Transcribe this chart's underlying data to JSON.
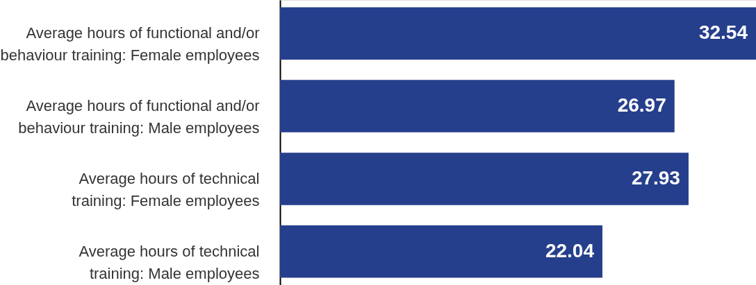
{
  "chart_data": {
    "type": "bar",
    "orientation": "horizontal",
    "categories": [
      "Average hours of functional and/or\nbehaviour training: Female employees",
      "Average hours of functional and/or\nbehaviour training: Male employees",
      "Average hours of technical\ntraining: Female employees",
      "Average hours of technical\ntraining: Male employees"
    ],
    "values": [
      32.54,
      26.97,
      27.93,
      22.04
    ],
    "color": "#263f8c",
    "data_labels": true
  }
}
